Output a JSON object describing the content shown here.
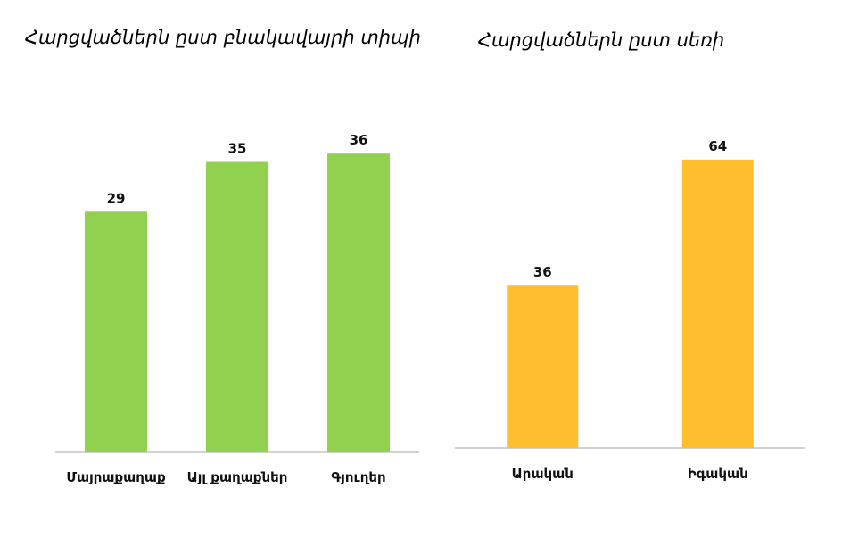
{
  "chart_data": [
    {
      "type": "bar",
      "title": "Հարցվածներն ըստ բնակավայրի տիպի",
      "categories": [
        "Մայրաքաղաք",
        "Այլ քաղաքներ",
        "Գյուղեր"
      ],
      "values": [
        29,
        35,
        36
      ],
      "color": "#92d050",
      "ylim": [
        0,
        40
      ],
      "grid": false,
      "legend": "none"
    },
    {
      "type": "bar",
      "title": "Հարցվածներն ըստ սեռի",
      "categories": [
        "Արական",
        "Իգական"
      ],
      "values": [
        36,
        64
      ],
      "color": "#ffbe2e",
      "ylim": [
        0,
        70
      ],
      "grid": false,
      "legend": "none"
    }
  ]
}
